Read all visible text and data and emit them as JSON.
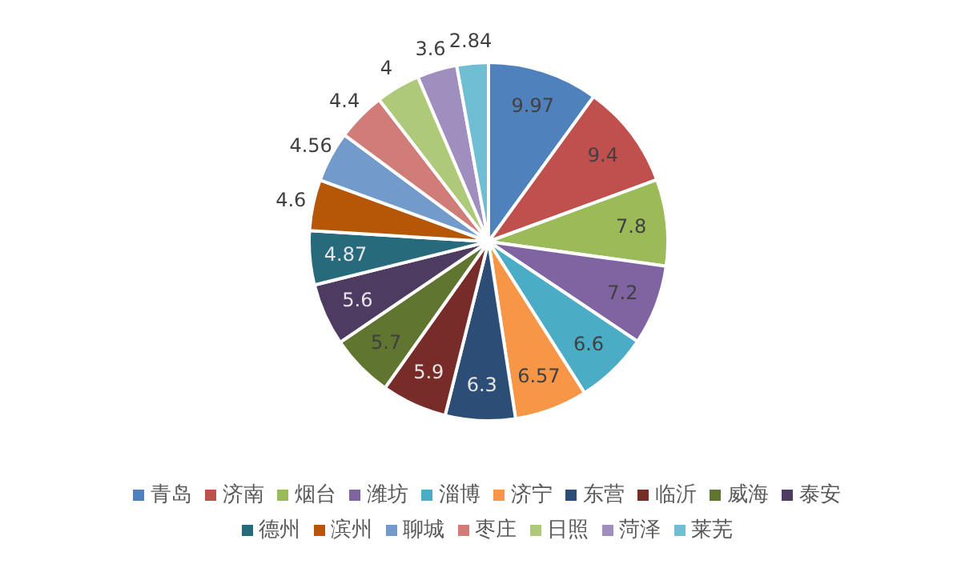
{
  "chart_data": {
    "type": "pie",
    "categories": [
      "青岛",
      "济南",
      "烟台",
      "潍坊",
      "淄博",
      "济宁",
      "东营",
      "临沂",
      "威海",
      "泰安",
      "德州",
      "滨州",
      "聊城",
      "枣庄",
      "日照",
      "菏泽",
      "莱芜"
    ],
    "values": [
      9.97,
      9.4,
      7.8,
      7.2,
      6.6,
      6.57,
      6.3,
      5.9,
      5.7,
      5.6,
      4.87,
      4.6,
      4.56,
      4.4,
      4,
      3.6,
      2.84
    ],
    "colors": [
      "#4f81bd",
      "#c0504d",
      "#9bbb59",
      "#8064a2",
      "#4bacc6",
      "#f79646",
      "#2c4d75",
      "#772c2a",
      "#5f7530",
      "#4d3b62",
      "#276a7c",
      "#b65708",
      "#729aca",
      "#d07c79",
      "#afc97a",
      "#a08ebf",
      "#6fbed3"
    ],
    "data_labels": true,
    "legend": "bottom"
  }
}
